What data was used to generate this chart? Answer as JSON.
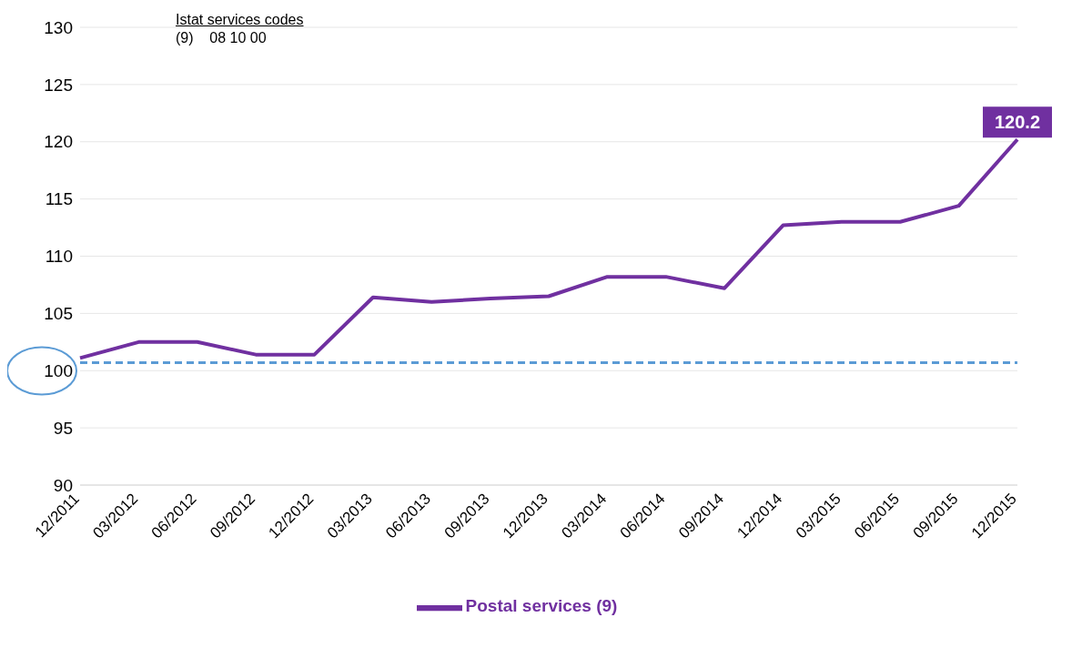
{
  "chart_data": {
    "type": "line",
    "categories": [
      "12/2011",
      "03/2012",
      "06/2012",
      "09/2012",
      "12/2012",
      "03/2013",
      "06/2013",
      "09/2013",
      "12/2013",
      "03/2014",
      "06/2014",
      "09/2014",
      "12/2014",
      "03/2015",
      "06/2015",
      "09/2015",
      "12/2015"
    ],
    "series": [
      {
        "name": "Postal services (9)",
        "color": "#7030a0",
        "values": [
          101.1,
          102.5,
          102.5,
          101.4,
          101.4,
          106.4,
          106.0,
          106.3,
          106.5,
          108.2,
          108.2,
          107.2,
          112.7,
          113.0,
          113.0,
          114.4,
          120.2
        ],
        "value_labels": [
          null,
          null,
          null,
          null,
          null,
          null,
          null,
          null,
          null,
          null,
          null,
          null,
          null,
          null,
          null,
          null,
          "120.2"
        ]
      }
    ],
    "ylim": [
      90,
      130
    ],
    "yticks": [
      90,
      95,
      100,
      105,
      110,
      115,
      120,
      125,
      130
    ],
    "grid": "y",
    "legend": "bottom",
    "marker": "none",
    "line_style": "solid",
    "ref_lines": [
      {
        "axis": "y",
        "value": 100.7,
        "color": "#5b9bd5",
        "line_style": "dashed"
      }
    ],
    "annotations": [
      "Istat services codes",
      "(9)    08 10 00"
    ]
  }
}
